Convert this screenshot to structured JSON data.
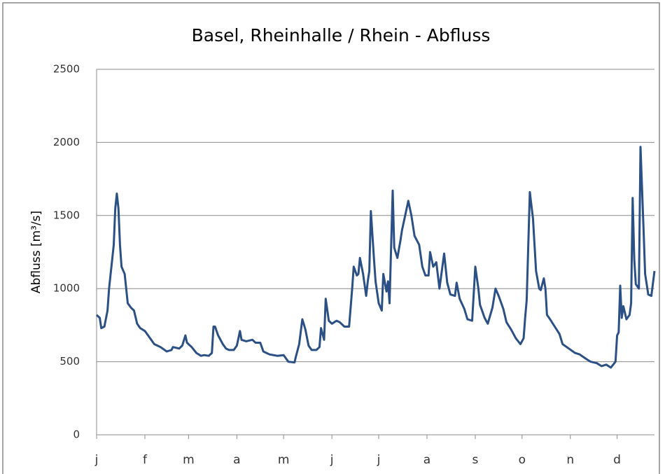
{
  "chart_data": {
    "type": "line",
    "title": "Basel, Rheinhalle / Rhein - Abfluss",
    "y_label": "Abfluss [m³/s]",
    "xlim": [
      0,
      358
    ],
    "xticks": [
      {
        "value": 0,
        "label": "j"
      },
      {
        "value": 31,
        "label": "f"
      },
      {
        "value": 59,
        "label": "m"
      },
      {
        "value": 90,
        "label": "a"
      },
      {
        "value": 120,
        "label": "m"
      },
      {
        "value": 151,
        "label": "j"
      },
      {
        "value": 181,
        "label": "j"
      },
      {
        "value": 212,
        "label": "a"
      },
      {
        "value": 243,
        "label": "s"
      },
      {
        "value": 273,
        "label": "o"
      },
      {
        "value": 304,
        "label": "n"
      },
      {
        "value": 334,
        "label": "d"
      }
    ],
    "ylim": [
      0,
      2500
    ],
    "yticks": [
      0,
      500,
      1000,
      1500,
      2000,
      2500
    ],
    "grid": true,
    "series": [
      {
        "color": "#2a5085",
        "x": [
          0,
          2,
          3,
          5,
          7,
          8,
          10,
          11,
          12,
          13,
          14,
          15,
          16,
          18,
          19,
          20,
          22,
          24,
          26,
          28,
          31,
          33,
          37,
          41,
          45,
          48,
          49,
          53,
          55,
          57,
          58,
          61,
          64,
          67,
          69,
          72,
          74,
          75,
          76,
          78,
          81,
          83,
          85,
          88,
          90,
          92,
          93,
          96,
          100,
          102,
          105,
          107,
          111,
          116,
          120,
          121,
          123,
          127,
          128,
          130,
          132,
          134,
          136,
          138,
          141,
          143,
          144,
          146,
          147,
          149,
          151,
          154,
          156,
          159,
          162,
          164,
          165,
          167,
          168,
          169,
          171,
          173,
          174,
          175,
          176,
          178,
          179,
          181,
          183,
          184,
          186,
          187,
          188,
          190,
          191,
          193,
          195,
          196,
          198,
          200,
          202,
          204,
          205,
          207,
          209,
          211,
          213,
          214,
          216,
          218,
          220,
          223,
          225,
          227,
          230,
          231,
          233,
          236,
          238,
          241,
          243,
          245,
          246,
          249,
          251,
          254,
          256,
          258,
          261,
          263,
          266,
          269,
          272,
          274,
          275,
          276,
          278,
          280,
          281,
          282,
          284,
          285,
          287,
          288,
          289,
          291,
          294,
          297,
          299,
          303,
          307,
          310,
          314,
          317,
          321,
          324,
          327,
          330,
          333,
          334,
          335,
          336,
          337,
          338,
          340,
          342,
          343,
          344,
          345,
          346,
          348,
          349,
          351,
          352,
          354,
          356,
          358
        ],
        "values": [
          820,
          800,
          730,
          740,
          850,
          1000,
          1200,
          1300,
          1550,
          1650,
          1550,
          1300,
          1150,
          1100,
          1000,
          900,
          870,
          850,
          760,
          730,
          710,
          680,
          620,
          600,
          570,
          580,
          600,
          590,
          610,
          680,
          630,
          600,
          560,
          540,
          545,
          540,
          560,
          740,
          740,
          680,
          620,
          590,
          580,
          580,
          610,
          710,
          650,
          640,
          650,
          630,
          630,
          570,
          550,
          540,
          545,
          530,
          500,
          495,
          540,
          620,
          790,
          720,
          610,
          580,
          580,
          600,
          730,
          650,
          930,
          780,
          760,
          780,
          770,
          740,
          740,
          1000,
          1150,
          1090,
          1100,
          1210,
          1100,
          950,
          1050,
          1120,
          1530,
          1200,
          1050,
          900,
          850,
          1100,
          980,
          1050,
          900,
          1670,
          1280,
          1210,
          1330,
          1400,
          1500,
          1600,
          1500,
          1360,
          1340,
          1300,
          1150,
          1090,
          1090,
          1250,
          1150,
          1180,
          1000,
          1240,
          1040,
          960,
          950,
          1040,
          930,
          860,
          790,
          780,
          1150,
          1000,
          890,
          800,
          760,
          870,
          1000,
          950,
          860,
          770,
          720,
          660,
          620,
          660,
          800,
          920,
          1660,
          1480,
          1300,
          1120,
          1000,
          990,
          1070,
          1000,
          820,
          790,
          740,
          690,
          620,
          590,
          560,
          550,
          520,
          500,
          490,
          470,
          480,
          460,
          500,
          680,
          700,
          1020,
          800,
          880,
          790,
          820,
          900,
          1620,
          1200,
          1030,
          1000,
          1970,
          1400,
          1100,
          960,
          950,
          1120
        ]
      }
    ]
  }
}
